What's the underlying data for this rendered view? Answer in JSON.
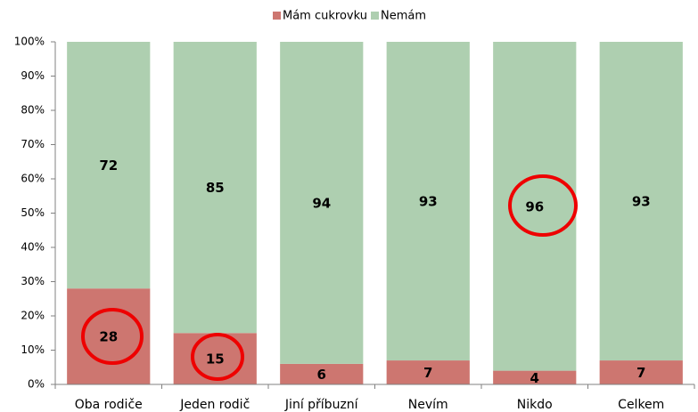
{
  "chart_data": {
    "type": "stacked_bar",
    "categories": [
      "Oba rodiče",
      "Jeden rodič",
      "Jiní příbuzní",
      "Nevím",
      "Nikdo",
      "Celkem"
    ],
    "series": [
      {
        "name": "Mám cukrovku",
        "color": "#cd7670",
        "values": [
          28,
          15,
          6,
          7,
          4,
          7
        ]
      },
      {
        "name": "Nemám",
        "color": "#aecfb0",
        "values": [
          72,
          85,
          94,
          93,
          96,
          93
        ]
      }
    ],
    "ylim": [
      0,
      100
    ],
    "yticks": [
      {
        "value": 0,
        "label": "0%"
      },
      {
        "value": 10,
        "label": "10%"
      },
      {
        "value": 20,
        "label": "20%"
      },
      {
        "value": 30,
        "label": "30%"
      },
      {
        "value": 40,
        "label": "40%"
      },
      {
        "value": 50,
        "label": "50%"
      },
      {
        "value": 60,
        "label": "60%"
      },
      {
        "value": 70,
        "label": "70%"
      },
      {
        "value": 80,
        "label": "80%"
      },
      {
        "value": 90,
        "label": "90%"
      },
      {
        "value": 100,
        "label": "100%"
      }
    ],
    "legend": "top"
  }
}
